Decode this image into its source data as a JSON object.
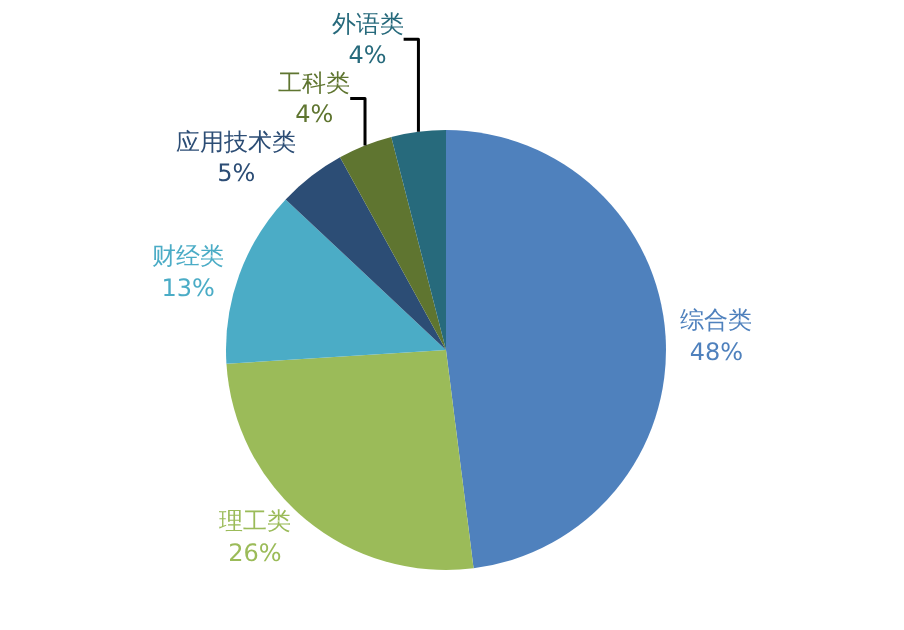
{
  "chart_data": {
    "type": "pie",
    "categories": [
      "综合类",
      "理工类",
      "财经类",
      "应用技术类",
      "工科类",
      "外语类"
    ],
    "values": [
      48,
      26,
      13,
      5,
      4,
      4
    ],
    "value_labels": [
      "48%",
      "26%",
      "13%",
      "5%",
      "4%",
      "4%"
    ],
    "colors": [
      "#4f81bd",
      "#9bbb59",
      "#4bacc6",
      "#2c4d75",
      "#5f7530",
      "#276a7c"
    ],
    "legend": false
  }
}
